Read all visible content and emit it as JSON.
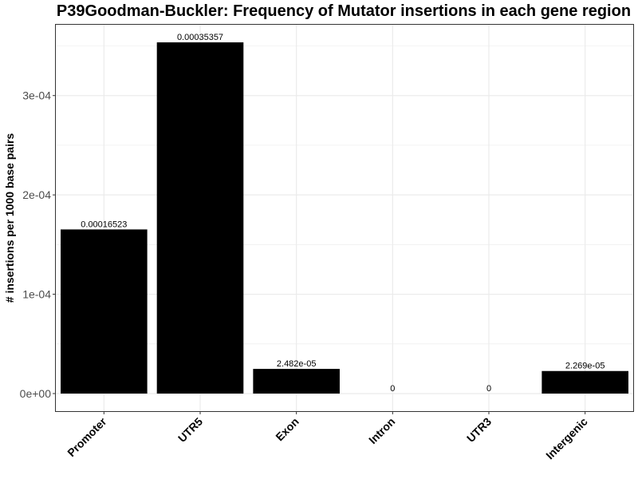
{
  "chart_data": {
    "type": "bar",
    "title": "P39Goodman-Buckler: Frequency of Mutator insertions in each gene region",
    "xlabel": "",
    "ylabel": "# insertions per 1000 base pairs",
    "categories": [
      "Promoter",
      "UTR5",
      "Exon",
      "Intron",
      "UTR3",
      "Intergenic"
    ],
    "values": [
      0.00016523,
      0.00035357,
      2.482e-05,
      0,
      0,
      2.269e-05
    ],
    "data_labels": [
      "0.00016523",
      "0.00035357",
      "2.482e-05",
      "0",
      "0",
      "2.269e-05"
    ],
    "y_ticks": [
      0,
      0.0001,
      0.0002,
      0.0003
    ],
    "y_tick_labels": [
      "0e+00",
      "1e-04",
      "2e-04",
      "3e-04"
    ],
    "ylim": [
      -1.77e-05,
      0.0003713
    ],
    "grid": true,
    "bar_color": "#000000",
    "gridline_color": "#ebebeb",
    "panel_border_color": "#333333"
  }
}
